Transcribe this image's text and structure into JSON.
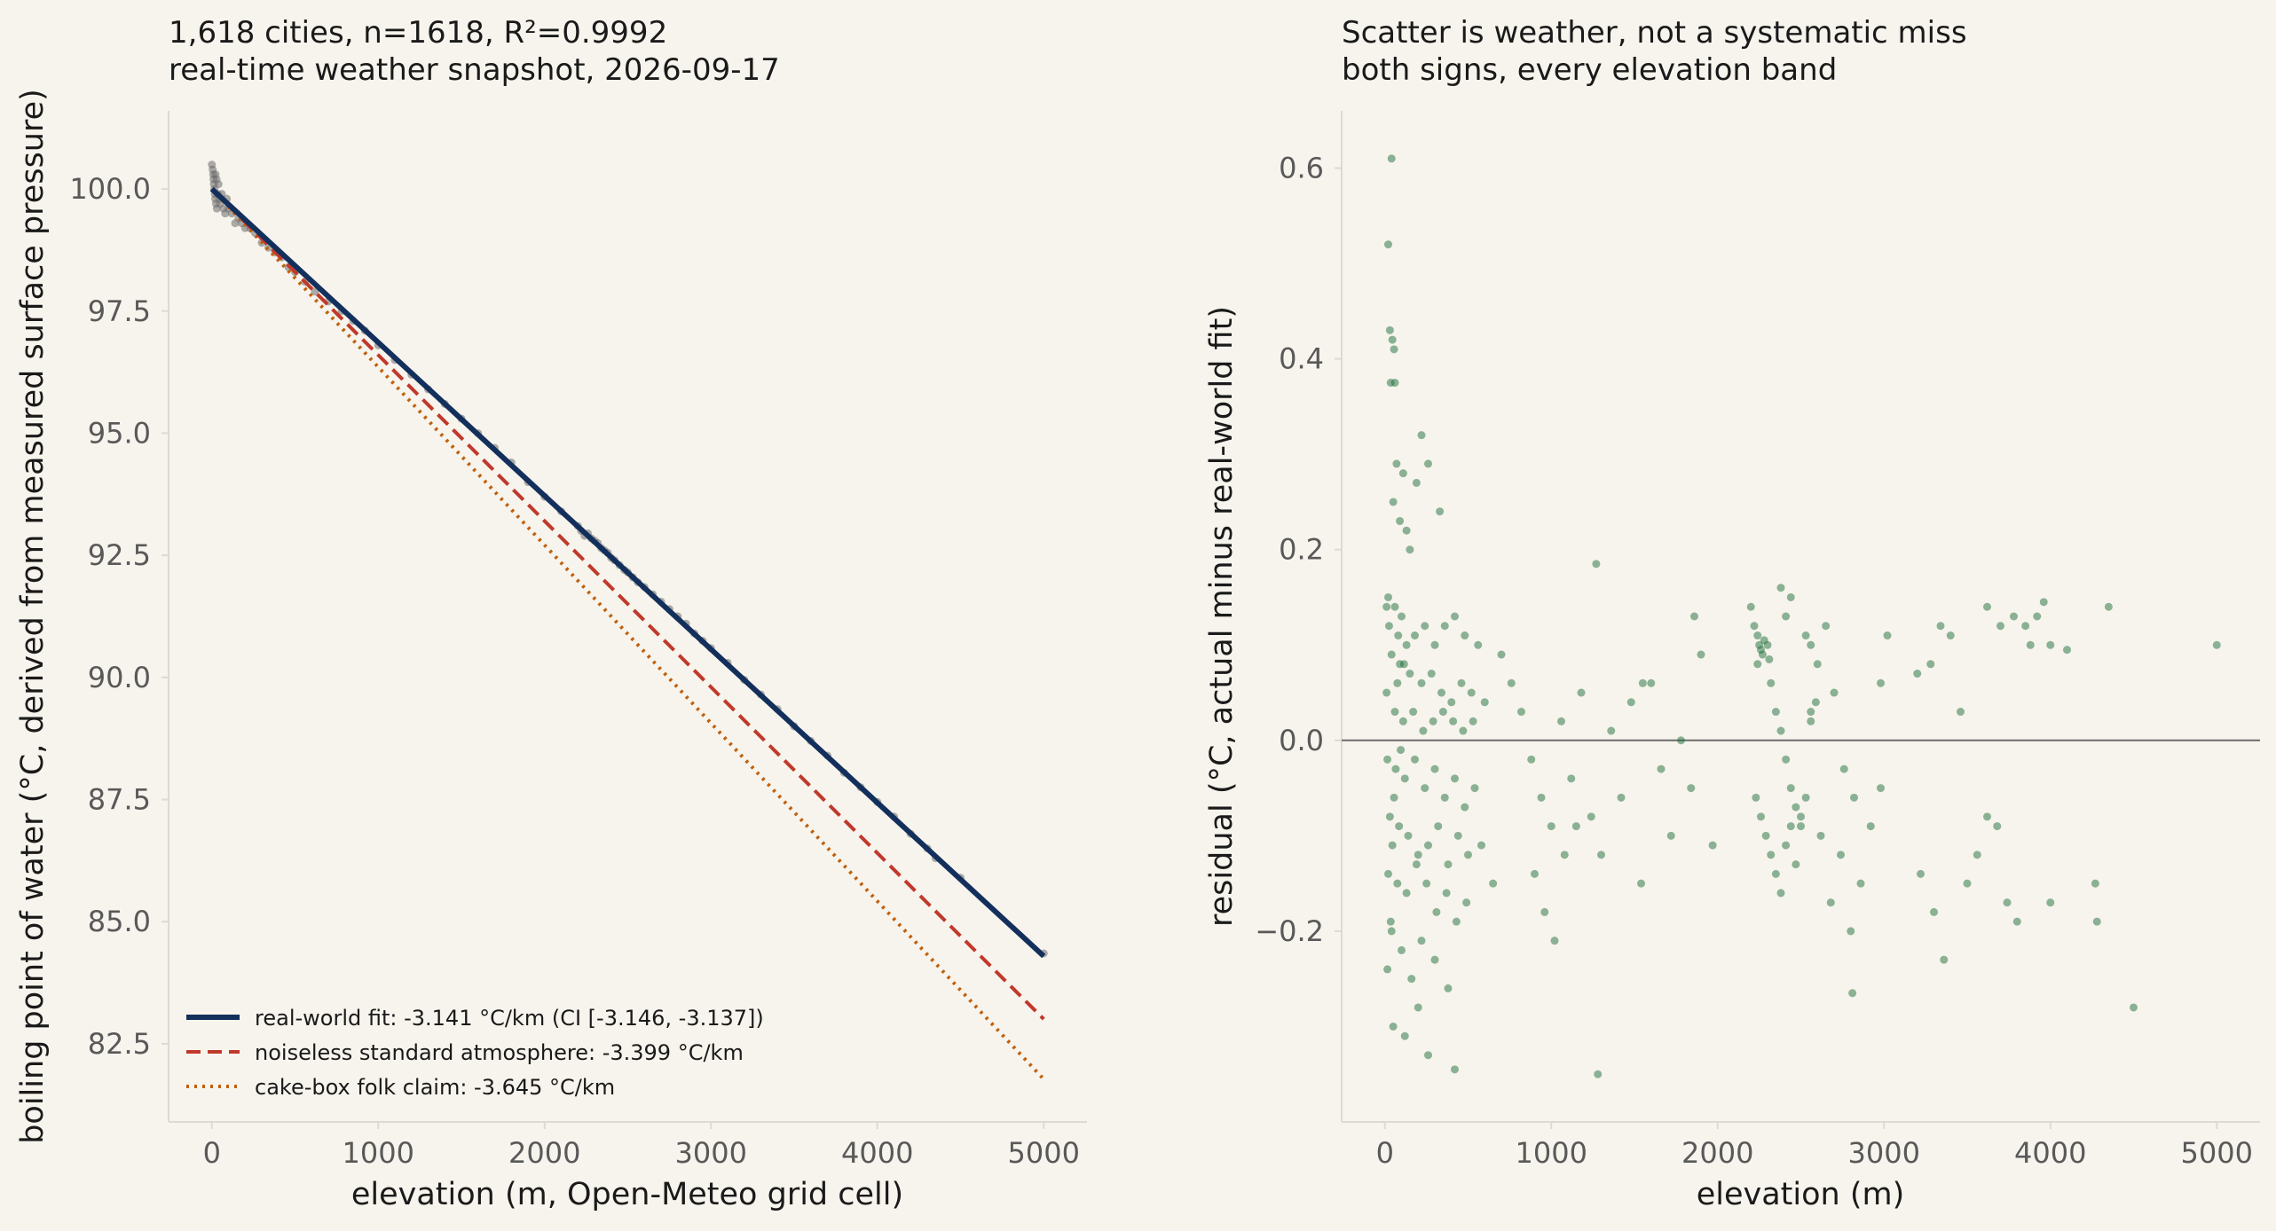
{
  "colors": {
    "background": "#f7f4ed",
    "axis_spine": "#dedad2",
    "tick_text": "#595959",
    "label_text": "#1a1a1a",
    "fit_line": "#132f5c",
    "standard_atmosphere": "#c0392b",
    "folk_claim": "#c0600d",
    "left_points": "#6b6b6b",
    "right_points": "#1d6e3a",
    "zero_line": "#6b6b6b"
  },
  "chart_data": [
    {
      "type": "scatter",
      "title": "1,618 cities, n=1618, R²=0.9992",
      "subtitle": "real-time weather snapshot, 2026-09-17",
      "xlabel": "elevation (m, Open-Meteo grid cell)",
      "ylabel": "boiling point of water (°C, derived from measured surface pressure)",
      "xlim": [
        -260,
        5260
      ],
      "ylim": [
        80.9,
        101.6
      ],
      "x_ticks": [
        0,
        1000,
        2000,
        3000,
        4000,
        5000
      ],
      "x_tick_labels": [
        "0",
        "1000",
        "2000",
        "3000",
        "4000",
        "5000"
      ],
      "y_ticks": [
        82.5,
        85.0,
        87.5,
        90.0,
        92.5,
        95.0,
        97.5,
        100.0
      ],
      "y_tick_labels": [
        "82.5",
        "85.0",
        "87.5",
        "90.0",
        "92.5",
        "95.0",
        "97.5",
        "100.0"
      ],
      "grid": false,
      "legend_position": "lower-left",
      "series": [
        {
          "name": "real-world fit: -3.141 °C/km (CI [-3.146, -3.137])",
          "kind": "line",
          "style": "solid",
          "color": "#132f5c",
          "x": [
            0,
            5000
          ],
          "y": [
            100.0,
            84.295
          ]
        },
        {
          "name": "noiseless standard atmosphere: -3.399 °C/km",
          "kind": "line",
          "style": "dashed",
          "color": "#c0392b",
          "x": [
            0,
            5000
          ],
          "y": [
            100.0,
            83.005
          ]
        },
        {
          "name": "cake-box folk claim: -3.645 °C/km",
          "kind": "line",
          "style": "dotted",
          "color": "#c0600d",
          "x": [
            0,
            5000
          ],
          "y": [
            100.0,
            81.775
          ]
        }
      ],
      "points": [
        [
          0,
          100.5
        ],
        [
          5,
          100.4
        ],
        [
          8,
          100.3
        ],
        [
          10,
          100.2
        ],
        [
          12,
          100.1
        ],
        [
          15,
          100.0
        ],
        [
          18,
          99.9
        ],
        [
          20,
          99.8
        ],
        [
          22,
          100.3
        ],
        [
          25,
          99.7
        ],
        [
          28,
          100.2
        ],
        [
          30,
          99.6
        ],
        [
          35,
          99.9
        ],
        [
          40,
          100.1
        ],
        [
          45,
          99.8
        ],
        [
          50,
          99.7
        ],
        [
          60,
          99.9
        ],
        [
          70,
          99.6
        ],
        [
          80,
          99.5
        ],
        [
          90,
          99.8
        ],
        [
          100,
          99.6
        ],
        [
          120,
          99.5
        ],
        [
          140,
          99.3
        ],
        [
          160,
          99.4
        ],
        [
          180,
          99.3
        ],
        [
          200,
          99.2
        ],
        [
          230,
          99.2
        ],
        [
          260,
          99.1
        ],
        [
          300,
          98.9
        ],
        [
          340,
          98.8
        ],
        [
          380,
          98.7
        ],
        [
          420,
          98.6
        ],
        [
          460,
          98.4
        ],
        [
          500,
          98.3
        ],
        [
          560,
          98.1
        ],
        [
          620,
          97.9
        ],
        [
          700,
          97.7
        ],
        [
          780,
          97.5
        ],
        [
          850,
          97.3
        ],
        [
          920,
          97.1
        ],
        [
          1000,
          96.8
        ],
        [
          1100,
          96.5
        ],
        [
          1200,
          96.2
        ],
        [
          1300,
          95.9
        ],
        [
          1400,
          95.6
        ],
        [
          1500,
          95.3
        ],
        [
          1600,
          95.0
        ],
        [
          1700,
          94.7
        ],
        [
          1800,
          94.4
        ],
        [
          1900,
          94.0
        ],
        [
          2000,
          93.7
        ],
        [
          2100,
          93.4
        ],
        [
          2200,
          93.1
        ],
        [
          2220,
          93.0
        ],
        [
          2240,
          92.9
        ],
        [
          2260,
          92.95
        ],
        [
          2280,
          92.85
        ],
        [
          2300,
          92.8
        ],
        [
          2320,
          92.75
        ],
        [
          2340,
          92.65
        ],
        [
          2360,
          92.6
        ],
        [
          2380,
          92.55
        ],
        [
          2400,
          92.45
        ],
        [
          2420,
          92.4
        ],
        [
          2450,
          92.3
        ],
        [
          2480,
          92.2
        ],
        [
          2500,
          92.15
        ],
        [
          2530,
          92.05
        ],
        [
          2560,
          91.95
        ],
        [
          2600,
          91.85
        ],
        [
          2650,
          91.7
        ],
        [
          2700,
          91.55
        ],
        [
          2750,
          91.4
        ],
        [
          2800,
          91.25
        ],
        [
          2850,
          91.1
        ],
        [
          2900,
          90.9
        ],
        [
          2950,
          90.75
        ],
        [
          3000,
          90.6
        ],
        [
          3100,
          90.3
        ],
        [
          3200,
          89.95
        ],
        [
          3300,
          89.65
        ],
        [
          3400,
          89.35
        ],
        [
          3500,
          89.0
        ],
        [
          3600,
          88.7
        ],
        [
          3700,
          88.4
        ],
        [
          3800,
          88.05
        ],
        [
          3900,
          87.75
        ],
        [
          4000,
          87.45
        ],
        [
          4100,
          87.15
        ],
        [
          4200,
          86.8
        ],
        [
          4300,
          86.5
        ],
        [
          4350,
          86.3
        ],
        [
          4500,
          85.9
        ],
        [
          5000,
          84.35
        ]
      ]
    },
    {
      "type": "scatter",
      "title": "Scatter is weather, not a systematic miss",
      "subtitle": "both signs, every elevation band",
      "xlabel": "elevation (m)",
      "ylabel": "residual (°C, actual minus real-world fit)",
      "xlim": [
        -260,
        5260
      ],
      "ylim": [
        -0.4,
        0.66
      ],
      "x_ticks": [
        0,
        1000,
        2000,
        3000,
        4000,
        5000
      ],
      "x_tick_labels": [
        "0",
        "1000",
        "2000",
        "3000",
        "4000",
        "5000"
      ],
      "y_ticks": [
        -0.2,
        0.0,
        0.2,
        0.4,
        0.6
      ],
      "y_tick_labels": [
        "−0.2",
        "0.0",
        "0.2",
        "0.4",
        "0.6"
      ],
      "grid": false,
      "reference_line_y": 0.0,
      "points": [
        [
          40,
          0.61
        ],
        [
          20,
          0.52
        ],
        [
          30,
          0.43
        ],
        [
          45,
          0.42
        ],
        [
          55,
          0.41
        ],
        [
          35,
          0.375
        ],
        [
          60,
          0.375
        ],
        [
          220,
          0.32
        ],
        [
          70,
          0.29
        ],
        [
          110,
          0.28
        ],
        [
          260,
          0.29
        ],
        [
          190,
          0.27
        ],
        [
          50,
          0.25
        ],
        [
          90,
          0.23
        ],
        [
          130,
          0.22
        ],
        [
          330,
          0.24
        ],
        [
          150,
          0.2
        ],
        [
          20,
          0.15
        ],
        [
          60,
          0.14
        ],
        [
          100,
          0.13
        ],
        [
          25,
          0.12
        ],
        [
          80,
          0.11
        ],
        [
          130,
          0.1
        ],
        [
          180,
          0.11
        ],
        [
          240,
          0.12
        ],
        [
          300,
          0.1
        ],
        [
          360,
          0.12
        ],
        [
          420,
          0.13
        ],
        [
          480,
          0.11
        ],
        [
          560,
          0.1
        ],
        [
          40,
          0.09
        ],
        [
          90,
          0.08
        ],
        [
          150,
          0.07
        ],
        [
          220,
          0.06
        ],
        [
          280,
          0.07
        ],
        [
          340,
          0.05
        ],
        [
          400,
          0.04
        ],
        [
          460,
          0.06
        ],
        [
          520,
          0.05
        ],
        [
          600,
          0.04
        ],
        [
          10,
          0.05
        ],
        [
          60,
          0.03
        ],
        [
          110,
          0.02
        ],
        [
          170,
          0.03
        ],
        [
          230,
          0.01
        ],
        [
          290,
          0.02
        ],
        [
          350,
          0.03
        ],
        [
          410,
          0.02
        ],
        [
          470,
          0.01
        ],
        [
          530,
          0.02
        ],
        [
          15,
          -0.02
        ],
        [
          65,
          -0.03
        ],
        [
          120,
          -0.04
        ],
        [
          180,
          -0.02
        ],
        [
          240,
          -0.05
        ],
        [
          300,
          -0.03
        ],
        [
          360,
          -0.06
        ],
        [
          420,
          -0.04
        ],
        [
          480,
          -0.07
        ],
        [
          540,
          -0.05
        ],
        [
          30,
          -0.08
        ],
        [
          85,
          -0.09
        ],
        [
          140,
          -0.1
        ],
        [
          200,
          -0.12
        ],
        [
          260,
          -0.11
        ],
        [
          320,
          -0.09
        ],
        [
          380,
          -0.13
        ],
        [
          440,
          -0.1
        ],
        [
          500,
          -0.12
        ],
        [
          580,
          -0.11
        ],
        [
          20,
          -0.14
        ],
        [
          75,
          -0.15
        ],
        [
          130,
          -0.16
        ],
        [
          190,
          -0.13
        ],
        [
          250,
          -0.15
        ],
        [
          310,
          -0.18
        ],
        [
          370,
          -0.16
        ],
        [
          430,
          -0.19
        ],
        [
          490,
          -0.17
        ],
        [
          650,
          -0.15
        ],
        [
          40,
          -0.2
        ],
        [
          100,
          -0.22
        ],
        [
          160,
          -0.25
        ],
        [
          220,
          -0.21
        ],
        [
          300,
          -0.23
        ],
        [
          380,
          -0.26
        ],
        [
          50,
          -0.3
        ],
        [
          120,
          -0.31
        ],
        [
          200,
          -0.28
        ],
        [
          260,
          -0.33
        ],
        [
          420,
          -0.345
        ],
        [
          1280,
          -0.35
        ],
        [
          15,
          -0.24
        ],
        [
          35,
          -0.19
        ],
        [
          55,
          -0.06
        ],
        [
          75,
          0.06
        ],
        [
          95,
          -0.01
        ],
        [
          115,
          0.08
        ],
        [
          10,
          0.14
        ],
        [
          45,
          -0.11
        ],
        [
          700,
          0.09
        ],
        [
          760,
          0.06
        ],
        [
          820,
          0.03
        ],
        [
          880,
          -0.02
        ],
        [
          940,
          -0.06
        ],
        [
          1000,
          -0.09
        ],
        [
          1060,
          0.02
        ],
        [
          1120,
          -0.04
        ],
        [
          1180,
          0.05
        ],
        [
          1240,
          -0.08
        ],
        [
          1300,
          -0.12
        ],
        [
          1360,
          0.01
        ],
        [
          1420,
          -0.06
        ],
        [
          1480,
          0.04
        ],
        [
          1540,
          -0.15
        ],
        [
          1600,
          0.06
        ],
        [
          1660,
          -0.03
        ],
        [
          1720,
          -0.1
        ],
        [
          1780,
          0.0
        ],
        [
          1840,
          -0.05
        ],
        [
          900,
          -0.14
        ],
        [
          960,
          -0.18
        ],
        [
          1020,
          -0.21
        ],
        [
          1080,
          -0.12
        ],
        [
          1150,
          -0.09
        ],
        [
          1270,
          0.185
        ],
        [
          1550,
          0.06
        ],
        [
          1860,
          0.13
        ],
        [
          1900,
          0.09
        ],
        [
          1970,
          -0.11
        ],
        [
          2200,
          0.14
        ],
        [
          2220,
          0.12
        ],
        [
          2240,
          0.11
        ],
        [
          2250,
          0.1
        ],
        [
          2260,
          0.095
        ],
        [
          2270,
          0.09
        ],
        [
          2280,
          0.105
        ],
        [
          2300,
          0.1
        ],
        [
          2310,
          0.085
        ],
        [
          2240,
          0.08
        ],
        [
          2320,
          0.06
        ],
        [
          2350,
          0.03
        ],
        [
          2380,
          0.01
        ],
        [
          2410,
          -0.02
        ],
        [
          2440,
          -0.05
        ],
        [
          2470,
          -0.07
        ],
        [
          2500,
          -0.09
        ],
        [
          2530,
          -0.06
        ],
        [
          2560,
          0.02
        ],
        [
          2590,
          0.04
        ],
        [
          2230,
          -0.06
        ],
        [
          2260,
          -0.08
        ],
        [
          2290,
          -0.1
        ],
        [
          2320,
          -0.12
        ],
        [
          2350,
          -0.14
        ],
        [
          2380,
          -0.16
        ],
        [
          2410,
          -0.11
        ],
        [
          2440,
          -0.09
        ],
        [
          2470,
          -0.13
        ],
        [
          2500,
          -0.08
        ],
        [
          2380,
          0.16
        ],
        [
          2410,
          0.13
        ],
        [
          2440,
          0.15
        ],
        [
          2530,
          0.11
        ],
        [
          2560,
          0.1
        ],
        [
          2600,
          0.08
        ],
        [
          2650,
          0.12
        ],
        [
          2700,
          0.05
        ],
        [
          2760,
          -0.03
        ],
        [
          2820,
          -0.06
        ],
        [
          2560,
          0.03
        ],
        [
          2620,
          -0.1
        ],
        [
          2680,
          -0.17
        ],
        [
          2740,
          -0.12
        ],
        [
          2800,
          -0.2
        ],
        [
          2860,
          -0.15
        ],
        [
          2920,
          -0.09
        ],
        [
          2980,
          0.06
        ],
        [
          2810,
          -0.265
        ],
        [
          2980,
          -0.05
        ],
        [
          3020,
          0.11
        ],
        [
          3200,
          0.07
        ],
        [
          3280,
          0.08
        ],
        [
          3340,
          0.12
        ],
        [
          3400,
          0.11
        ],
        [
          3460,
          0.03
        ],
        [
          3300,
          -0.18
        ],
        [
          3360,
          -0.23
        ],
        [
          3220,
          -0.14
        ],
        [
          3500,
          -0.15
        ],
        [
          3560,
          -0.12
        ],
        [
          3620,
          -0.08
        ],
        [
          3680,
          -0.09
        ],
        [
          3740,
          -0.17
        ],
        [
          3800,
          -0.19
        ],
        [
          3850,
          0.12
        ],
        [
          3880,
          0.1
        ],
        [
          3920,
          0.13
        ],
        [
          3960,
          0.145
        ],
        [
          4000,
          0.1
        ],
        [
          3620,
          0.14
        ],
        [
          3700,
          0.12
        ],
        [
          3780,
          0.13
        ],
        [
          4100,
          0.095
        ],
        [
          4270,
          -0.15
        ],
        [
          4280,
          -0.19
        ],
        [
          4350,
          0.14
        ],
        [
          4500,
          -0.28
        ],
        [
          4000,
          -0.17
        ],
        [
          5000,
          0.1
        ]
      ]
    }
  ]
}
